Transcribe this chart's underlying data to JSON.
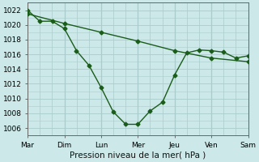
{
  "background_color": "#cce8e8",
  "grid_color": "#aacccc",
  "line_color": "#1a5c1a",
  "xlabel": "Pression niveau de la mer( hPa )",
  "xlim": [
    0,
    6
  ],
  "ylim": [
    1005,
    1023
  ],
  "yticks": [
    1006,
    1008,
    1010,
    1012,
    1014,
    1016,
    1018,
    1020,
    1022
  ],
  "xtick_labels": [
    "Mar",
    "Dim",
    "Lun",
    "Mer",
    "Jeu",
    "Ven",
    "Sam"
  ],
  "xtick_pos": [
    0,
    1,
    2,
    3,
    4,
    5,
    6
  ],
  "line1_x": [
    0,
    0.33,
    0.67,
    1.0,
    1.33,
    1.67,
    2.0,
    2.33,
    2.67,
    3.0,
    3.33,
    3.67,
    4.0,
    4.33,
    4.67,
    5.0,
    5.33,
    5.67,
    6.0
  ],
  "line1_y": [
    1022,
    1020.5,
    1020.5,
    1019.5,
    1016.5,
    1014.5,
    1011.5,
    1008.2,
    1006.5,
    1006.5,
    1008.3,
    1009.5,
    1013.2,
    1016.2,
    1016.6,
    1016.5,
    1016.3,
    1015.5,
    1015.8
  ],
  "line2_x": [
    0,
    1.0,
    2.0,
    3.0,
    4.0,
    5.0,
    6.0
  ],
  "line2_y": [
    1021.5,
    1020.2,
    1019.0,
    1017.8,
    1016.5,
    1015.5,
    1015.0
  ],
  "minor_x_per_day": 3,
  "num_days": 6
}
